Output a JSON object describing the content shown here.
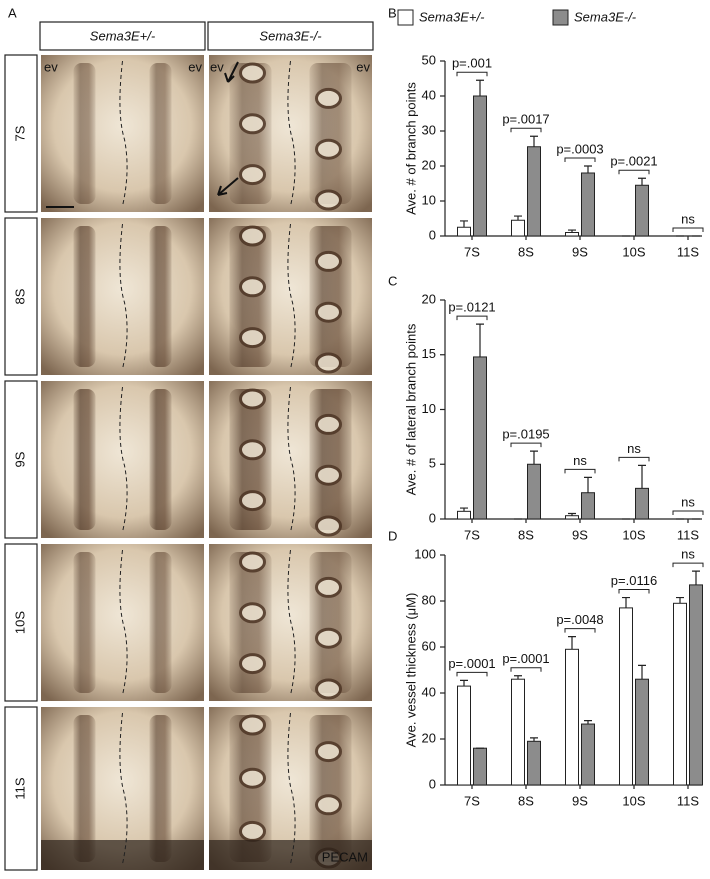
{
  "panel_a": {
    "panel_label": "A",
    "columns": [
      "Sema3E+/-",
      "Sema3E-/-"
    ],
    "rows": [
      "7S",
      "8S",
      "9S",
      "10S",
      "11S"
    ],
    "ev_labels": [
      "ev",
      "ev",
      "ev",
      "ev"
    ],
    "stain": "PECAM"
  },
  "chart_data": [
    {
      "type": "bar",
      "panel_label": "B",
      "y_label": "Ave. # of branch points",
      "categories": [
        "7S",
        "8S",
        "9S",
        "10S",
        "11S"
      ],
      "series": [
        {
          "name": "Sema3E+/-",
          "color": "#ffffff",
          "values": [
            2.5,
            4.5,
            1,
            0,
            0
          ],
          "errors": [
            1.8,
            1.2,
            0.7,
            0,
            0
          ]
        },
        {
          "name": "Sema3E-/-",
          "color": "#8c8c8c",
          "values": [
            40,
            25.5,
            18,
            14.5,
            0
          ],
          "errors": [
            4.5,
            3,
            2,
            2,
            0
          ]
        }
      ],
      "annotations": [
        "p=.001",
        "p=.0017",
        "p=.0003",
        "p=.0021",
        "ns"
      ],
      "ylim": [
        0,
        50
      ],
      "yticks": [
        0,
        10,
        20,
        30,
        40,
        50
      ]
    },
    {
      "type": "bar",
      "panel_label": "C",
      "y_label": "Ave. # of lateral branch points",
      "categories": [
        "7S",
        "8S",
        "9S",
        "10S",
        "11S"
      ],
      "series": [
        {
          "color": "#ffffff",
          "values": [
            0.7,
            0,
            0.3,
            0,
            0
          ],
          "errors": [
            0.3,
            0,
            0.2,
            0,
            0
          ]
        },
        {
          "color": "#8c8c8c",
          "values": [
            14.8,
            5,
            2.4,
            2.8,
            0
          ],
          "errors": [
            3,
            1.2,
            1.4,
            2.1,
            0
          ]
        }
      ],
      "annotations": [
        "p=.0121",
        "p=.0195",
        "ns",
        "ns",
        "ns"
      ],
      "ylim": [
        0,
        20
      ],
      "yticks": [
        0,
        5,
        10,
        15,
        20
      ]
    },
    {
      "type": "bar",
      "panel_label": "D",
      "y_label": "Ave. vessel thickness (μM)",
      "categories": [
        "7S",
        "8S",
        "9S",
        "10S",
        "11S"
      ],
      "series": [
        {
          "color": "#ffffff",
          "values": [
            43,
            46,
            59,
            77,
            79
          ],
          "errors": [
            2.5,
            1.5,
            5.5,
            4.5,
            2.5
          ]
        },
        {
          "color": "#8c8c8c",
          "values": [
            16,
            19,
            26.5,
            46,
            87
          ],
          "errors": [
            0,
            1.5,
            1.5,
            6,
            6
          ]
        }
      ],
      "annotations": [
        "p=.0001",
        "p=.0001",
        "p=.0048",
        "p=.0116",
        "ns"
      ],
      "ylim": [
        0,
        100
      ],
      "yticks": [
        0,
        20,
        40,
        60,
        80,
        100
      ]
    }
  ]
}
